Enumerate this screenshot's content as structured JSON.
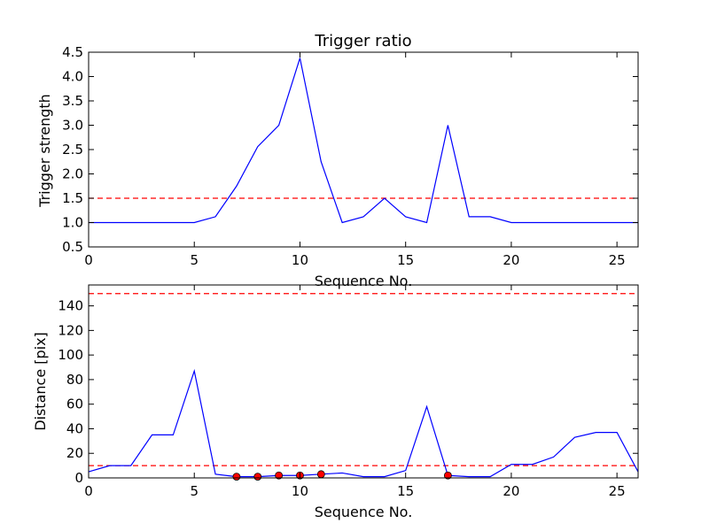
{
  "chart_data": [
    {
      "type": "line",
      "title": "Trigger ratio",
      "xlabel": "Sequence No.",
      "ylabel": "Trigger strength",
      "xlim": [
        0,
        26
      ],
      "ylim": [
        0.5,
        4.5
      ],
      "xticks": [
        "0",
        "5",
        "10",
        "15",
        "20",
        "25"
      ],
      "yticks": [
        "0.5",
        "1.0",
        "1.5",
        "2.0",
        "2.5",
        "3.0",
        "3.5",
        "4.0",
        "4.5"
      ],
      "x": [
        0,
        1,
        2,
        3,
        4,
        5,
        6,
        7,
        8,
        9,
        10,
        11,
        12,
        13,
        14,
        15,
        16,
        17,
        18,
        19,
        20,
        21,
        22,
        23,
        24,
        25,
        26
      ],
      "series": [
        {
          "values": [
            1.0,
            1.0,
            1.0,
            1.0,
            1.0,
            1.0,
            1.12,
            1.75,
            2.56,
            3.0,
            4.38,
            2.25,
            1.0,
            1.12,
            1.5,
            1.12,
            1.0,
            3.0,
            1.12,
            1.12,
            1.0,
            1.0,
            1.0,
            1.0,
            1.0,
            1.0,
            1.0
          ],
          "color": "#0000ff"
        }
      ],
      "hlines": [
        {
          "y": 1.5,
          "color": "#ff0000",
          "style": "dashed"
        }
      ]
    },
    {
      "type": "line",
      "title": "",
      "xlabel": "Sequence No.",
      "ylabel": "Distance [pix]",
      "xlim": [
        0,
        26
      ],
      "ylim": [
        0,
        157
      ],
      "xticks": [
        "0",
        "5",
        "10",
        "15",
        "20",
        "25"
      ],
      "yticks": [
        "0",
        "20",
        "40",
        "60",
        "80",
        "100",
        "120",
        "140"
      ],
      "x": [
        0,
        1,
        2,
        3,
        4,
        5,
        6,
        7,
        8,
        9,
        10,
        11,
        12,
        13,
        14,
        15,
        16,
        17,
        18,
        19,
        20,
        21,
        22,
        23,
        24,
        25,
        26
      ],
      "series": [
        {
          "values": [
            5,
            10,
            10,
            35,
            35,
            87,
            3,
            1,
            1,
            2,
            2,
            3,
            4,
            1,
            1,
            6,
            58,
            2,
            1,
            1,
            11,
            11,
            17,
            33,
            37,
            37,
            5
          ],
          "color": "#0000ff"
        }
      ],
      "markers": {
        "x": [
          7,
          8,
          9,
          10,
          11,
          17
        ],
        "y": [
          1,
          1,
          2,
          2,
          3,
          2
        ],
        "color": "#ff0000"
      },
      "hlines": [
        {
          "y": 150,
          "color": "#ff0000",
          "style": "dashed"
        },
        {
          "y": 10,
          "color": "#ff0000",
          "style": "dashed"
        }
      ]
    }
  ]
}
